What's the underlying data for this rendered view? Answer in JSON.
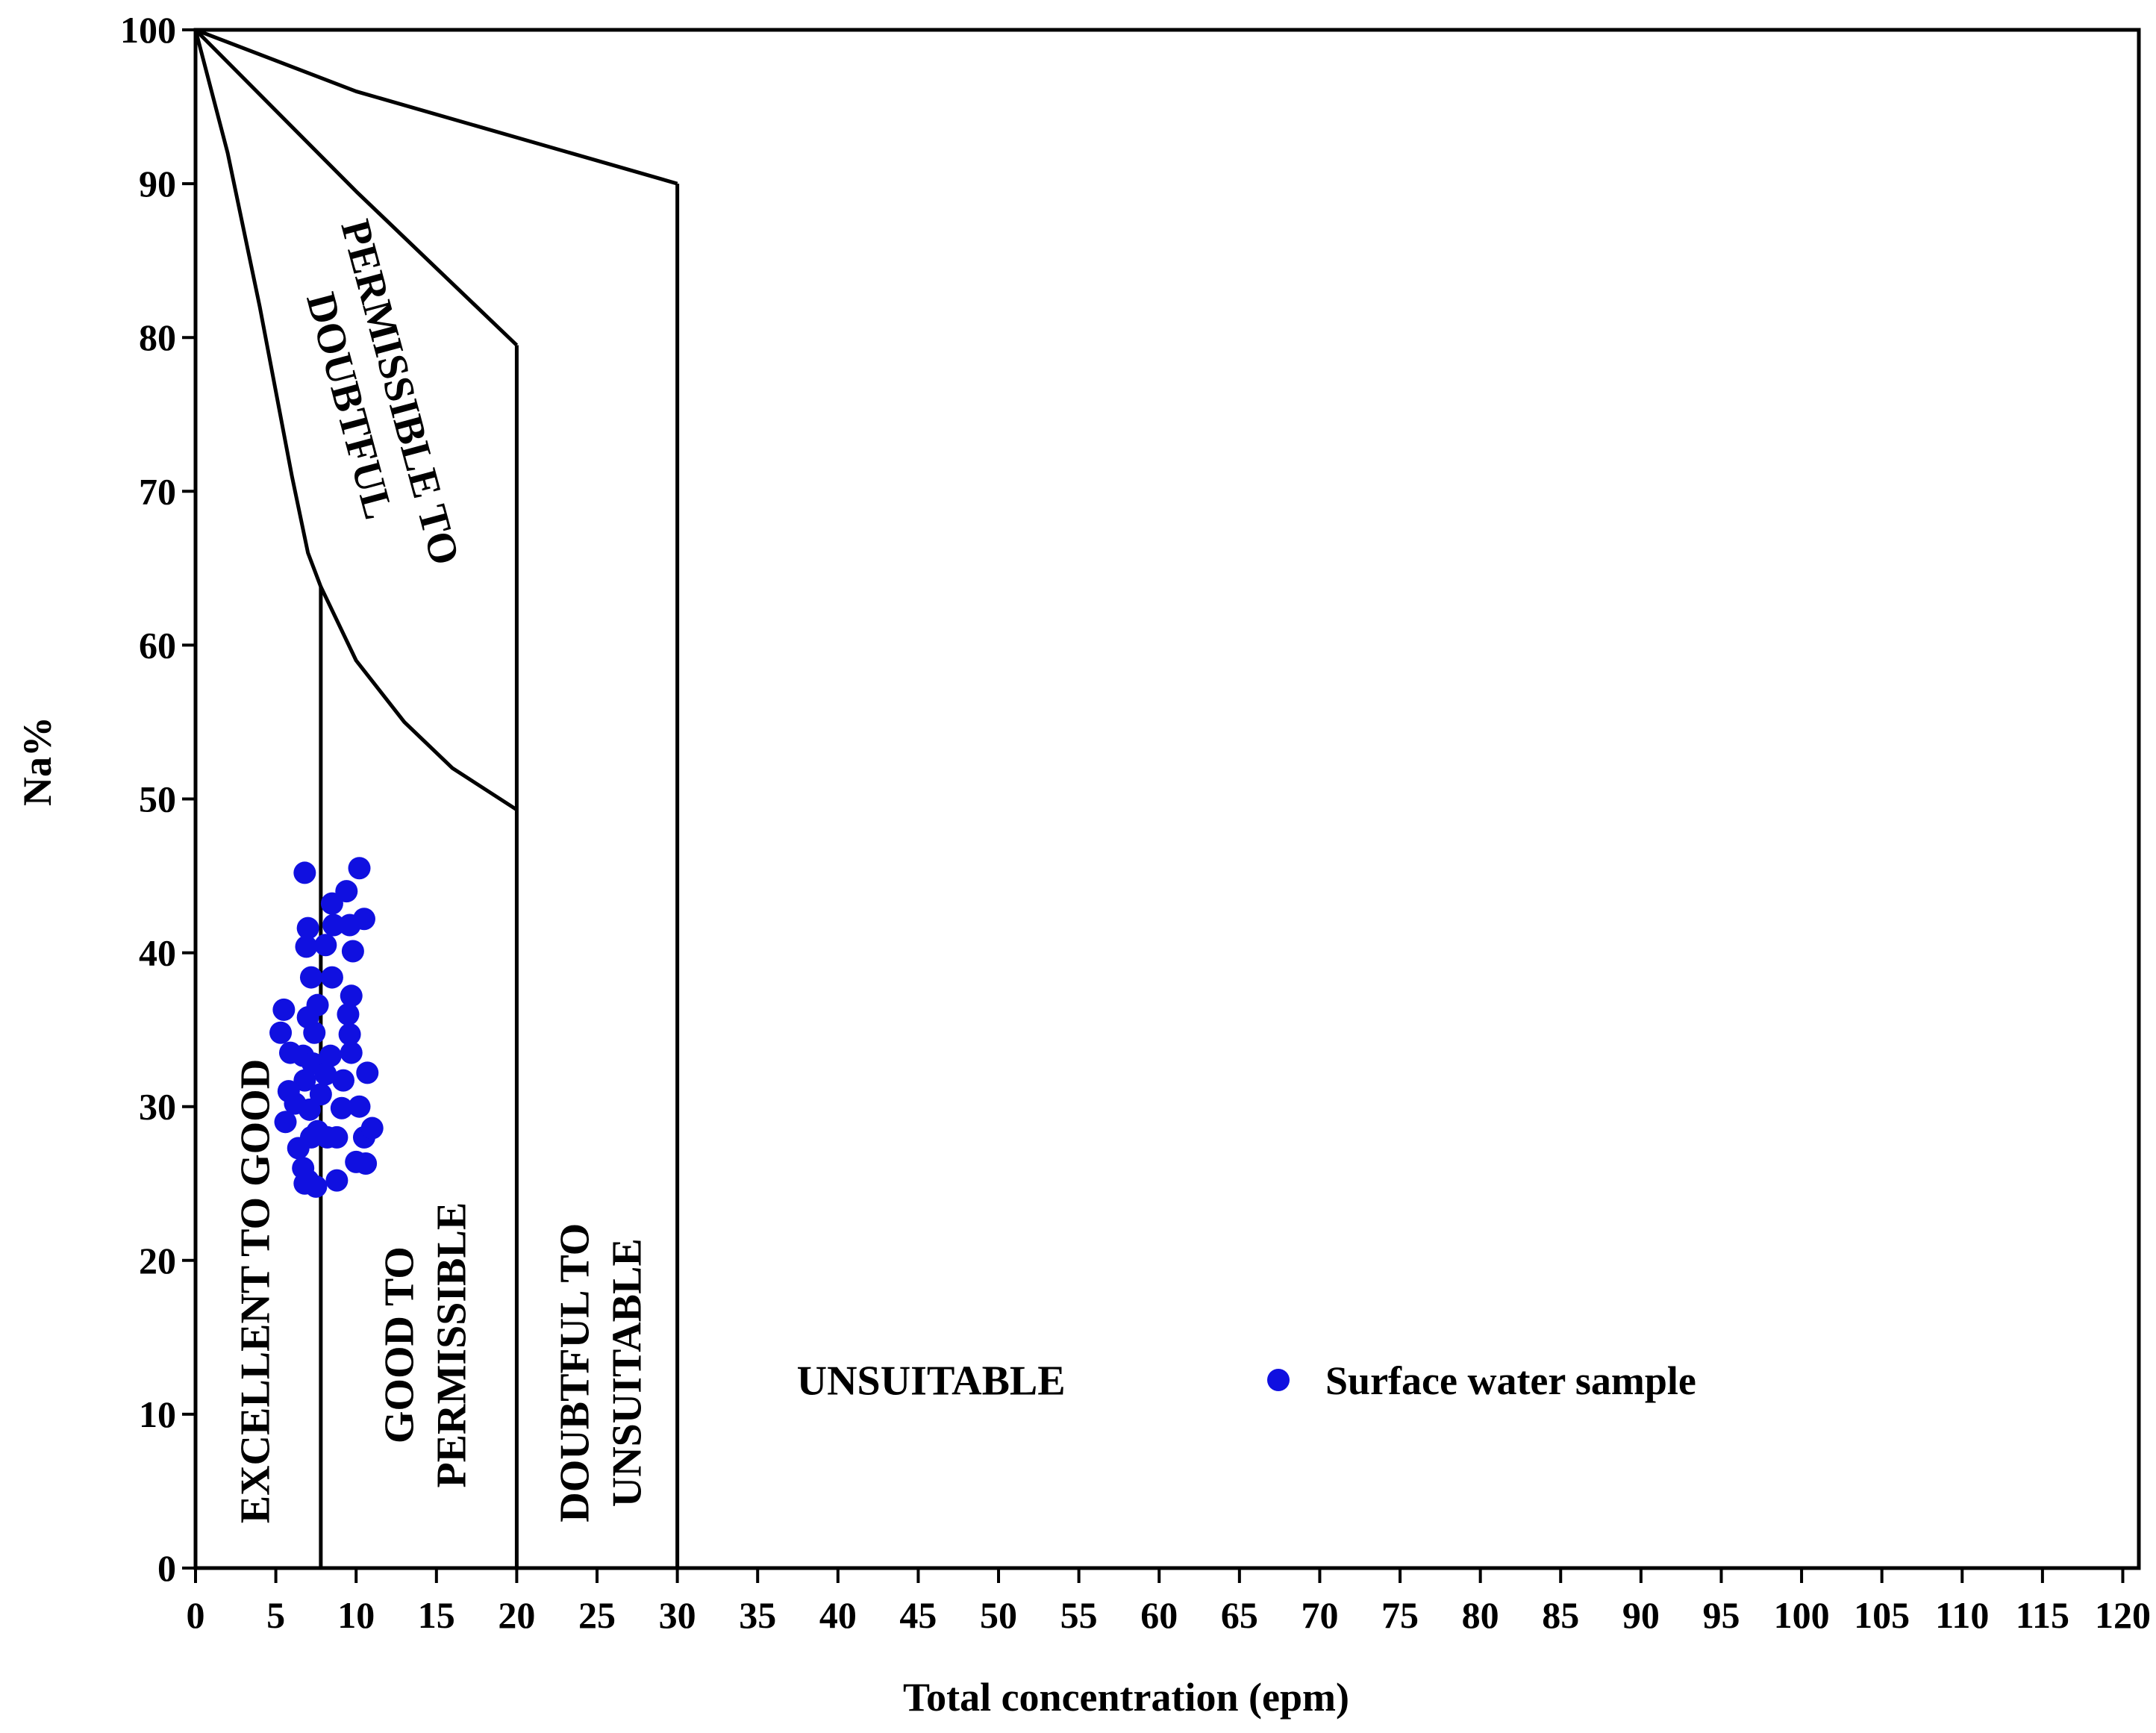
{
  "chart_data": {
    "type": "scatter",
    "title": "",
    "xlabel": "Total concentration (epm)",
    "ylabel": "Na%",
    "xlim": [
      0,
      121
    ],
    "ylim": [
      0,
      100
    ],
    "x_ticks": [
      0,
      5,
      10,
      15,
      20,
      25,
      30,
      35,
      40,
      45,
      50,
      55,
      60,
      65,
      70,
      75,
      80,
      85,
      90,
      95,
      100,
      105,
      110,
      115,
      120
    ],
    "y_ticks": [
      0,
      10,
      20,
      30,
      40,
      50,
      60,
      70,
      80,
      90,
      100
    ],
    "grid": false,
    "legend_position": "bottom-center",
    "colors": {
      "points": "#1010e0",
      "lines": "#000000"
    },
    "series": [
      {
        "name": "Surface water sample",
        "points": [
          {
            "x": 6.8,
            "y": 45.2
          },
          {
            "x": 10.2,
            "y": 45.5
          },
          {
            "x": 9.4,
            "y": 44.0
          },
          {
            "x": 8.5,
            "y": 43.2
          },
          {
            "x": 10.5,
            "y": 42.2
          },
          {
            "x": 7.0,
            "y": 41.6
          },
          {
            "x": 8.6,
            "y": 41.8
          },
          {
            "x": 9.6,
            "y": 41.8
          },
          {
            "x": 6.9,
            "y": 40.4
          },
          {
            "x": 8.1,
            "y": 40.5
          },
          {
            "x": 9.8,
            "y": 40.1
          },
          {
            "x": 7.2,
            "y": 38.4
          },
          {
            "x": 8.5,
            "y": 38.4
          },
          {
            "x": 9.7,
            "y": 37.2
          },
          {
            "x": 5.5,
            "y": 36.3
          },
          {
            "x": 7.6,
            "y": 36.6
          },
          {
            "x": 7.0,
            "y": 35.8
          },
          {
            "x": 9.5,
            "y": 36.0
          },
          {
            "x": 5.3,
            "y": 34.8
          },
          {
            "x": 7.4,
            "y": 34.8
          },
          {
            "x": 9.6,
            "y": 34.7
          },
          {
            "x": 5.9,
            "y": 33.5
          },
          {
            "x": 6.7,
            "y": 33.3
          },
          {
            "x": 8.4,
            "y": 33.3
          },
          {
            "x": 7.3,
            "y": 32.8
          },
          {
            "x": 9.7,
            "y": 33.5
          },
          {
            "x": 8.1,
            "y": 32.1
          },
          {
            "x": 10.7,
            "y": 32.2
          },
          {
            "x": 6.8,
            "y": 31.7
          },
          {
            "x": 9.2,
            "y": 31.7
          },
          {
            "x": 5.8,
            "y": 31.0
          },
          {
            "x": 7.8,
            "y": 30.8
          },
          {
            "x": 6.2,
            "y": 30.2
          },
          {
            "x": 7.1,
            "y": 29.8
          },
          {
            "x": 9.1,
            "y": 29.9
          },
          {
            "x": 10.2,
            "y": 30.0
          },
          {
            "x": 5.6,
            "y": 29.0
          },
          {
            "x": 7.6,
            "y": 28.4
          },
          {
            "x": 7.2,
            "y": 28.0
          },
          {
            "x": 8.2,
            "y": 28.0
          },
          {
            "x": 8.8,
            "y": 28.0
          },
          {
            "x": 10.5,
            "y": 28.0
          },
          {
            "x": 11.0,
            "y": 28.6
          },
          {
            "x": 6.4,
            "y": 27.3
          },
          {
            "x": 10.0,
            "y": 26.4
          },
          {
            "x": 10.6,
            "y": 26.3
          },
          {
            "x": 6.7,
            "y": 26.0
          },
          {
            "x": 7.0,
            "y": 25.2
          },
          {
            "x": 7.5,
            "y": 24.8
          },
          {
            "x": 8.8,
            "y": 25.2
          },
          {
            "x": 6.8,
            "y": 25.0
          }
        ]
      }
    ],
    "boundaries": [
      {
        "name": "curve-a",
        "points": [
          [
            0,
            100
          ],
          [
            2,
            92
          ],
          [
            4,
            82
          ],
          [
            6,
            71
          ],
          [
            7,
            66
          ],
          [
            7.8,
            63.8
          ]
        ]
      },
      {
        "name": "curve-b",
        "points": [
          [
            0,
            100
          ],
          [
            10,
            89.5
          ],
          [
            16,
            83.5
          ],
          [
            20,
            79.5
          ]
        ]
      },
      {
        "name": "curve-c",
        "points": [
          [
            0,
            100
          ],
          [
            10,
            96
          ],
          [
            20,
            93
          ],
          [
            30,
            90
          ]
        ]
      },
      {
        "name": "curve-d",
        "points": [
          [
            7.8,
            63.8
          ],
          [
            10,
            59
          ],
          [
            13,
            55
          ],
          [
            16,
            52
          ],
          [
            20,
            49.3
          ]
        ]
      },
      {
        "name": "vertical-8",
        "points": [
          [
            7.8,
            0
          ],
          [
            7.8,
            63.8
          ]
        ]
      },
      {
        "name": "vertical-20",
        "points": [
          [
            20,
            0
          ],
          [
            20,
            79.5
          ]
        ]
      },
      {
        "name": "vertical-30",
        "points": [
          [
            30,
            0
          ],
          [
            30,
            90
          ]
        ]
      }
    ],
    "region_labels": [
      {
        "lines": [
          "EXCELLENT TO GOOD"
        ],
        "x": 3.7,
        "y": 18,
        "rotate": -90
      },
      {
        "lines": [
          "GOOD TO",
          "PERMISSIBLE"
        ],
        "x": 14.3,
        "y": 14.5,
        "rotate": -90
      },
      {
        "lines": [
          "DOUBTFUL TO",
          "UNSUITABLE"
        ],
        "x": 25.2,
        "y": 12.7,
        "rotate": -90
      },
      {
        "lines": [
          "PERMISSIBLE TO",
          "DOUBTFUL"
        ],
        "x": 11.2,
        "y": 76,
        "rotate": 75
      },
      {
        "lines": [
          "UNSUITABLE"
        ],
        "x": 45.8,
        "y": 12.2,
        "rotate": 0
      }
    ]
  }
}
